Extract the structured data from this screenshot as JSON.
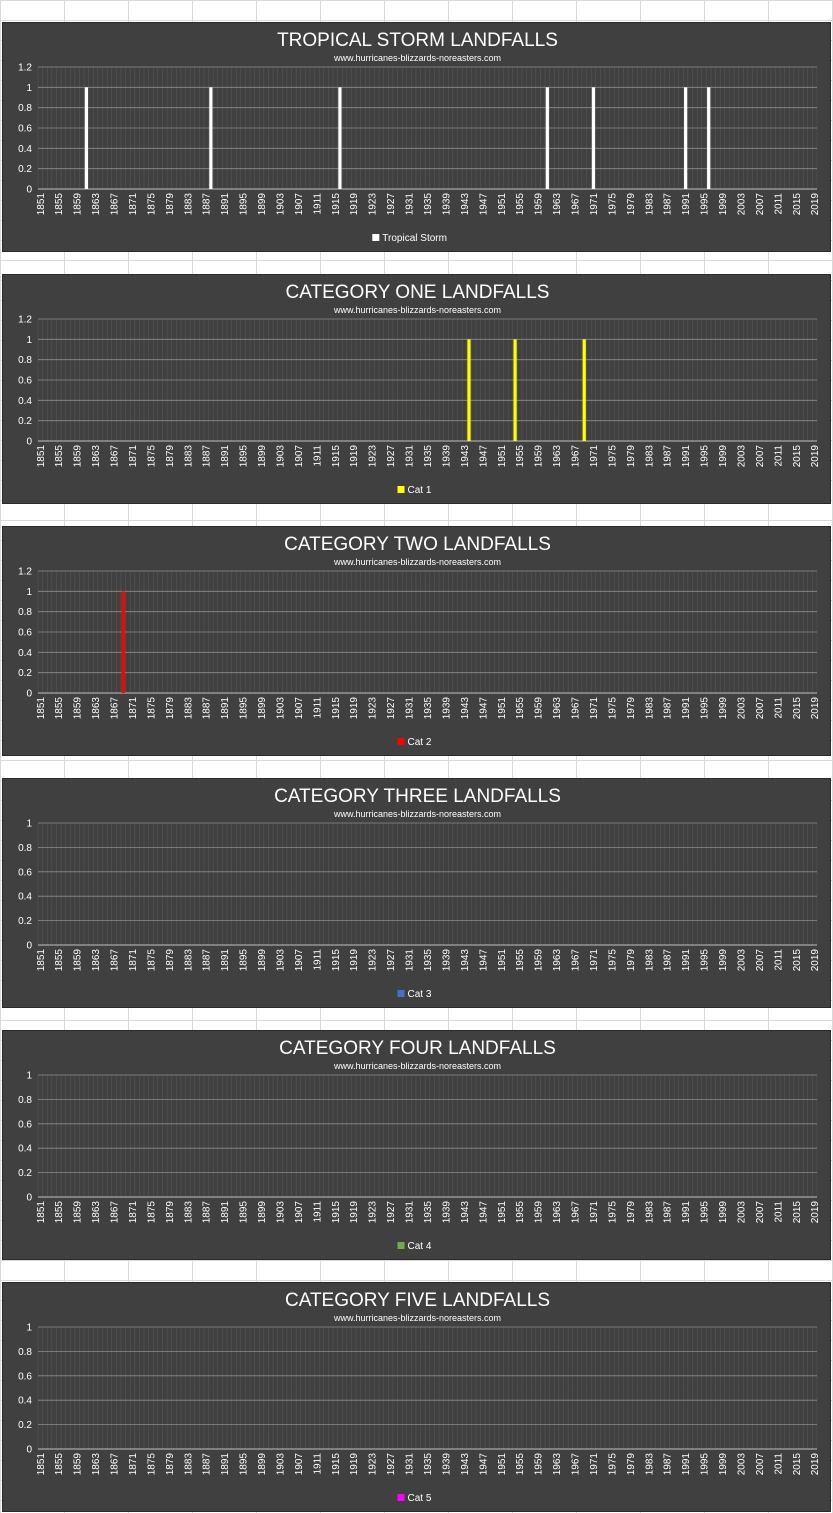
{
  "chart_data": [
    {
      "type": "bar",
      "title": "TROPICAL STORM LANDFALLS",
      "subtitle": "www.hurricanes-blizzards-noreasters.com",
      "x_start": 1851,
      "x_end": 2019,
      "x_tick_step": 4,
      "ylim": [
        0,
        1.2
      ],
      "y_ticks": [
        "0",
        "0.2",
        "0.4",
        "0.6",
        "0.8",
        "1",
        "1.2"
      ],
      "series": [
        {
          "name": "Tropical Storm",
          "color": "#ffffff",
          "x": [
            1861,
            1888,
            1916,
            1961,
            1971,
            1991,
            1996
          ],
          "values": [
            1,
            1,
            1,
            1,
            1,
            1,
            1
          ]
        }
      ],
      "grid": true,
      "legend": "bottom"
    },
    {
      "type": "bar",
      "title": "CATEGORY ONE LANDFALLS",
      "subtitle": "www.hurricanes-blizzards-noreasters.com",
      "x_start": 1851,
      "x_end": 2019,
      "x_tick_step": 4,
      "ylim": [
        0,
        1.2
      ],
      "y_ticks": [
        "0",
        "0.2",
        "0.4",
        "0.6",
        "0.8",
        "1",
        "1.2"
      ],
      "series": [
        {
          "name": "Cat 1",
          "color": "#ffff00",
          "x": [
            1944,
            1954,
            1969
          ],
          "values": [
            1,
            1,
            1
          ]
        }
      ],
      "grid": true,
      "legend": "bottom"
    },
    {
      "type": "bar",
      "title": "CATEGORY TWO LANDFALLS",
      "subtitle": "www.hurricanes-blizzards-noreasters.com",
      "x_start": 1851,
      "x_end": 2019,
      "x_tick_step": 4,
      "ylim": [
        0,
        1.2
      ],
      "y_ticks": [
        "0",
        "0.2",
        "0.4",
        "0.6",
        "0.8",
        "1",
        "1.2"
      ],
      "series": [
        {
          "name": "Cat 2",
          "color": "#ff0000",
          "x": [
            1869
          ],
          "values": [
            1
          ]
        }
      ],
      "grid": true,
      "legend": "bottom"
    },
    {
      "type": "bar",
      "title": "CATEGORY THREE LANDFALLS",
      "subtitle": "www.hurricanes-blizzards-noreasters.com",
      "x_start": 1851,
      "x_end": 2019,
      "x_tick_step": 4,
      "ylim": [
        0,
        1
      ],
      "y_ticks": [
        "0",
        "0.2",
        "0.4",
        "0.6",
        "0.8",
        "1"
      ],
      "series": [
        {
          "name": "Cat 3",
          "color": "#4472c4",
          "x": [],
          "values": []
        }
      ],
      "grid": true,
      "legend": "bottom"
    },
    {
      "type": "bar",
      "title": "CATEGORY FOUR LANDFALLS",
      "subtitle": "www.hurricanes-blizzards-noreasters.com",
      "x_start": 1851,
      "x_end": 2019,
      "x_tick_step": 4,
      "ylim": [
        0,
        1
      ],
      "y_ticks": [
        "0",
        "0.2",
        "0.4",
        "0.6",
        "0.8",
        "1"
      ],
      "series": [
        {
          "name": "Cat 4",
          "color": "#70ad47",
          "x": [],
          "values": []
        }
      ],
      "grid": true,
      "legend": "bottom"
    },
    {
      "type": "bar",
      "title": "CATEGORY FIVE LANDFALLS",
      "subtitle": "www.hurricanes-blizzards-noreasters.com",
      "x_start": 1851,
      "x_end": 2019,
      "x_tick_step": 4,
      "ylim": [
        0,
        1
      ],
      "y_ticks": [
        "0",
        "0.2",
        "0.4",
        "0.6",
        "0.8",
        "1"
      ],
      "series": [
        {
          "name": "Cat 5",
          "color": "#ff00ff",
          "x": [],
          "values": []
        }
      ],
      "grid": true,
      "legend": "bottom"
    }
  ]
}
